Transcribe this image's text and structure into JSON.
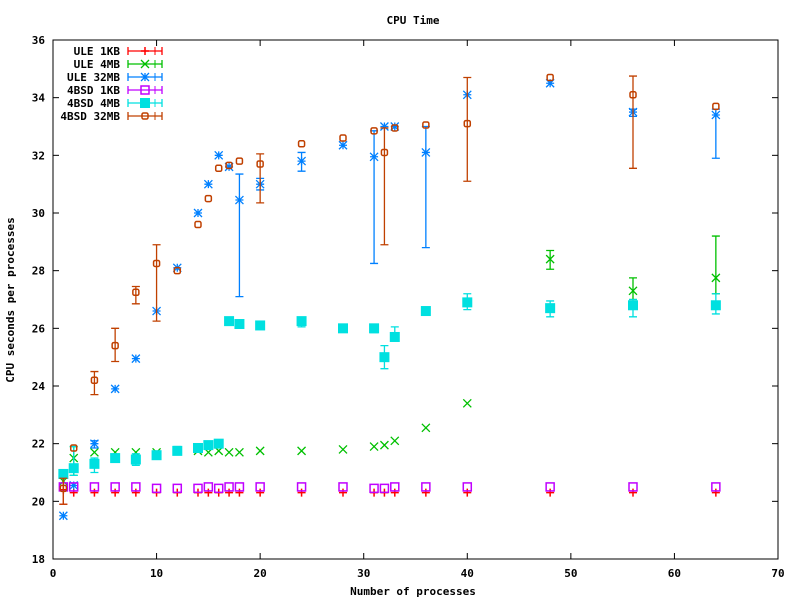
{
  "chart_data": {
    "type": "scatter",
    "title": "CPU Time",
    "xlabel": "Number of processes",
    "ylabel": "CPU seconds per processes",
    "xlim": [
      0,
      70
    ],
    "ylim": [
      18,
      36
    ],
    "xticks": [
      0,
      10,
      20,
      30,
      40,
      50,
      60,
      70
    ],
    "yticks": [
      18,
      20,
      22,
      24,
      26,
      28,
      30,
      32,
      34,
      36
    ],
    "grid": false,
    "legend_position": "top-left",
    "error_bars": true,
    "series": [
      {
        "name": "ULE 1KB",
        "color": "#ff0000",
        "marker": "plus",
        "x": [
          1,
          2,
          4,
          6,
          8,
          10,
          12,
          14,
          15,
          16,
          17,
          18,
          20,
          24,
          28,
          31,
          32,
          33,
          36,
          40,
          48,
          56,
          64
        ],
        "y": [
          20.4,
          20.3,
          20.3,
          20.3,
          20.3,
          20.3,
          20.3,
          20.3,
          20.3,
          20.3,
          20.3,
          20.3,
          20.3,
          20.3,
          20.3,
          20.3,
          20.3,
          20.3,
          20.3,
          20.3,
          20.3,
          20.3,
          20.3
        ],
        "err": [
          [
            19.9,
            20.8
          ],
          null,
          null,
          null,
          null,
          null,
          null,
          null,
          null,
          null,
          null,
          null,
          null,
          null,
          null,
          null,
          null,
          null,
          null,
          null,
          null,
          null,
          null
        ]
      },
      {
        "name": "ULE 4MB",
        "color": "#00c000",
        "marker": "cross",
        "x": [
          1,
          2,
          4,
          6,
          8,
          10,
          12,
          14,
          15,
          16,
          17,
          18,
          20,
          24,
          28,
          31,
          32,
          33,
          36,
          40,
          48,
          56,
          64
        ],
        "y": [
          20.7,
          21.5,
          21.7,
          21.7,
          21.7,
          21.7,
          21.75,
          21.75,
          21.7,
          21.75,
          21.7,
          21.7,
          21.75,
          21.75,
          21.8,
          21.9,
          21.95,
          22.1,
          22.55,
          23.4,
          28.4,
          27.3,
          27.75
        ],
        "err": [
          null,
          [
            20.9,
            21.9
          ],
          null,
          null,
          null,
          null,
          null,
          null,
          null,
          null,
          null,
          null,
          null,
          null,
          null,
          null,
          null,
          null,
          null,
          null,
          [
            28.05,
            28.7
          ],
          [
            27.0,
            27.75
          ],
          [
            27.2,
            29.2
          ]
        ]
      },
      {
        "name": "ULE 32MB",
        "color": "#0080ff",
        "marker": "star",
        "x": [
          1,
          2,
          4,
          6,
          8,
          10,
          12,
          14,
          15,
          16,
          17,
          18,
          20,
          24,
          28,
          31,
          32,
          33,
          36,
          40,
          48,
          56,
          64
        ],
        "y": [
          19.5,
          20.55,
          22.0,
          23.9,
          24.95,
          26.6,
          28.1,
          30.0,
          31.0,
          32.0,
          31.6,
          30.45,
          31.0,
          31.8,
          32.35,
          31.95,
          33.0,
          33.0,
          32.1,
          34.1,
          34.5,
          33.5,
          33.4
        ],
        "err": [
          null,
          null,
          [
            21.85,
            22.1
          ],
          null,
          null,
          null,
          null,
          null,
          null,
          null,
          null,
          [
            27.1,
            31.35
          ],
          [
            30.8,
            31.2
          ],
          [
            31.45,
            32.1
          ],
          null,
          [
            28.25,
            32.85
          ],
          null,
          null,
          [
            28.8,
            33.0
          ],
          null,
          null,
          [
            33.35,
            33.6
          ],
          [
            31.9,
            33.6
          ]
        ]
      },
      {
        "name": "4BSD 1KB",
        "color": "#c000ff",
        "marker": "open-square",
        "x": [
          1,
          2,
          4,
          6,
          8,
          10,
          12,
          14,
          15,
          16,
          17,
          18,
          20,
          24,
          28,
          31,
          32,
          33,
          36,
          40,
          48,
          56,
          64
        ],
        "y": [
          20.5,
          20.5,
          20.5,
          20.5,
          20.5,
          20.45,
          20.45,
          20.45,
          20.5,
          20.45,
          20.5,
          20.5,
          20.5,
          20.5,
          20.5,
          20.45,
          20.45,
          20.5,
          20.5,
          20.5,
          20.5,
          20.5,
          20.5
        ],
        "err": [
          null,
          null,
          null,
          null,
          null,
          null,
          null,
          null,
          null,
          null,
          null,
          null,
          null,
          null,
          null,
          null,
          null,
          null,
          null,
          null,
          null,
          null,
          null
        ]
      },
      {
        "name": "4BSD 4MB",
        "color": "#00e0e0",
        "marker": "filled-square",
        "x": [
          1,
          2,
          4,
          6,
          8,
          10,
          12,
          14,
          15,
          16,
          17,
          18,
          20,
          24,
          28,
          31,
          32,
          33,
          36,
          40,
          48,
          56,
          64
        ],
        "y": [
          20.95,
          21.15,
          21.3,
          21.5,
          21.45,
          21.6,
          21.75,
          21.85,
          21.95,
          22.0,
          26.25,
          26.15,
          26.1,
          26.25,
          26.0,
          26.0,
          25.0,
          25.7,
          26.6,
          26.9,
          26.7,
          26.8,
          26.8
        ],
        "err": [
          null,
          [
            20.9,
            21.9
          ],
          [
            21.0,
            21.5
          ],
          [
            21.35,
            21.6
          ],
          [
            21.25,
            21.65
          ],
          null,
          [
            21.7,
            21.9
          ],
          null,
          null,
          null,
          null,
          null,
          null,
          [
            26.05,
            26.3
          ],
          null,
          [
            25.85,
            26.05
          ],
          [
            24.6,
            25.4
          ],
          [
            25.6,
            26.05
          ],
          null,
          [
            26.65,
            27.2
          ],
          [
            26.4,
            26.95
          ],
          [
            26.4,
            27.0
          ],
          [
            26.5,
            27.2
          ]
        ]
      },
      {
        "name": "4BSD 32MB",
        "color": "#c04000",
        "marker": "open-circle",
        "x": [
          1,
          2,
          4,
          6,
          8,
          10,
          12,
          14,
          15,
          16,
          17,
          18,
          20,
          24,
          28,
          31,
          32,
          33,
          36,
          40,
          48,
          56,
          64
        ],
        "y": [
          20.45,
          21.85,
          24.2,
          25.4,
          27.25,
          28.25,
          28.0,
          29.6,
          30.5,
          31.55,
          31.65,
          31.8,
          31.7,
          32.4,
          32.6,
          32.85,
          32.1,
          32.95,
          33.05,
          33.1,
          34.7,
          34.1,
          33.7
        ],
        "err": [
          [
            19.9,
            20.8
          ],
          null,
          [
            23.7,
            24.5
          ],
          [
            24.85,
            26.0
          ],
          [
            26.85,
            27.45
          ],
          [
            26.25,
            28.9
          ],
          null,
          null,
          null,
          null,
          null,
          null,
          [
            30.35,
            32.05
          ],
          null,
          null,
          null,
          [
            28.9,
            32.95
          ],
          null,
          null,
          [
            31.1,
            34.7
          ],
          null,
          [
            31.55,
            34.75
          ],
          null
        ]
      }
    ]
  }
}
